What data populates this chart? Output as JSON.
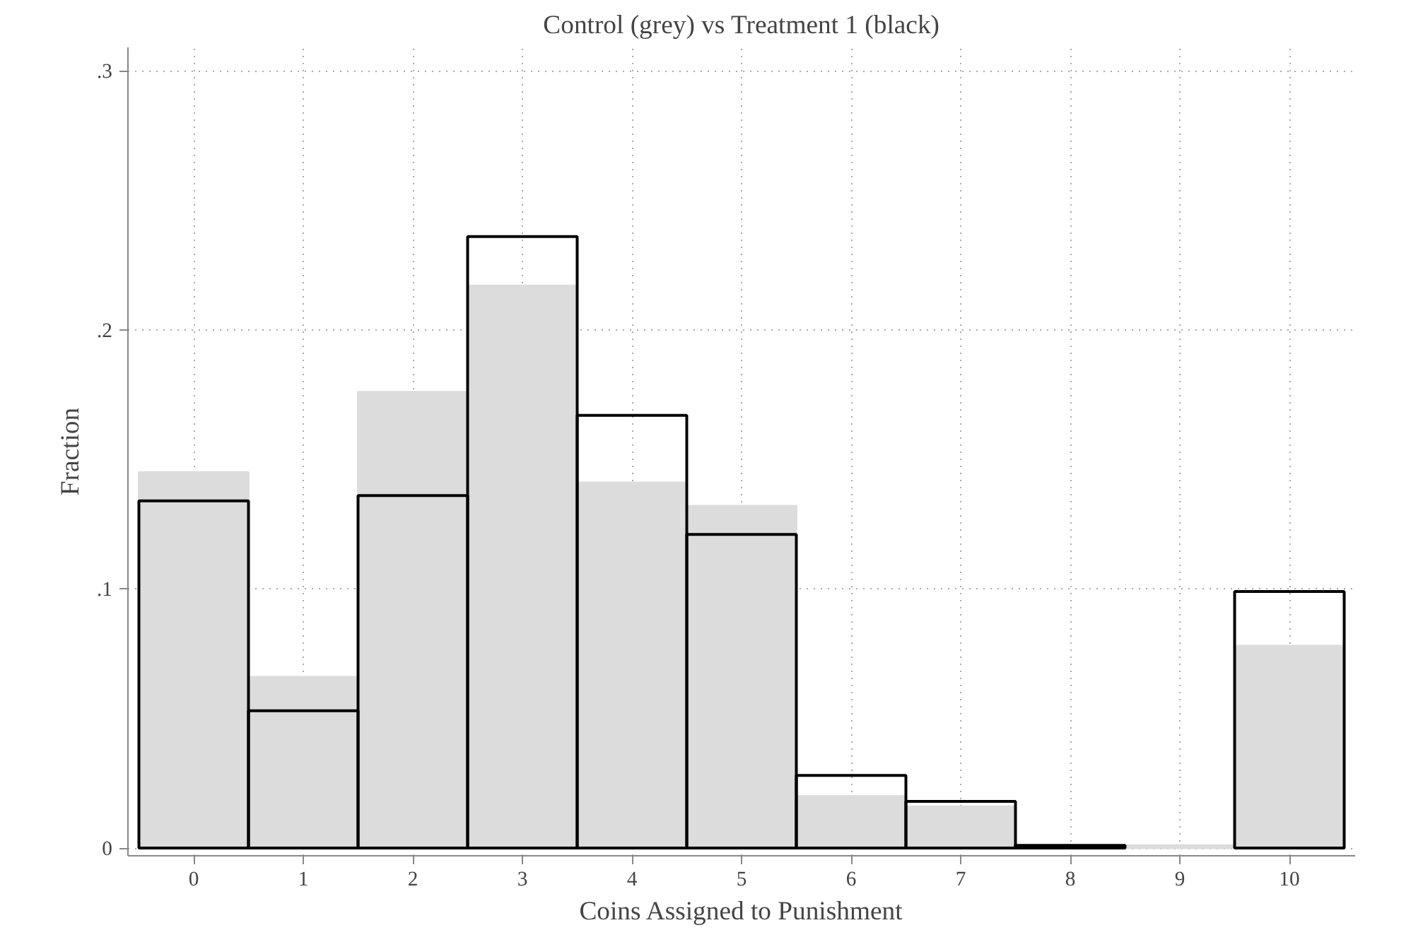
{
  "chart_data": {
    "type": "histogram",
    "title": "Control (grey) vs Treatment 1 (black)",
    "xlabel": "Coins Assigned to Punishment",
    "ylabel": "Fraction",
    "bins": [
      -0.5,
      0.5,
      1.5,
      2.5,
      3.5,
      4.5,
      5.5,
      6.5,
      7.5,
      8.5,
      9.5,
      10.5
    ],
    "series": [
      {
        "color": "#dcdcdc",
        "values": [
          0.145,
          0.066,
          0.176,
          0.217,
          0.141,
          0.132,
          0.02,
          0.016,
          null,
          0.001,
          0.078
        ]
      },
      {
        "color": "#000000",
        "values": [
          0.134,
          0.053,
          0.136,
          0.236,
          0.167,
          0.121,
          0.028,
          0.018,
          0.001,
          null,
          0.099
        ]
      }
    ],
    "xlim": [
      -0.6,
      10.6
    ],
    "ylim": [
      0,
      0.3
    ],
    "xticks": [
      0,
      1,
      2,
      3,
      4,
      5,
      6,
      7,
      8,
      9,
      10
    ],
    "yticks": [
      {
        "value": 0,
        "label": "0"
      },
      {
        "value": 0.1,
        "label": ".1"
      },
      {
        "value": 0.2,
        "label": ".2"
      },
      {
        "value": 0.3,
        "label": ".3"
      }
    ],
    "grid": true
  }
}
